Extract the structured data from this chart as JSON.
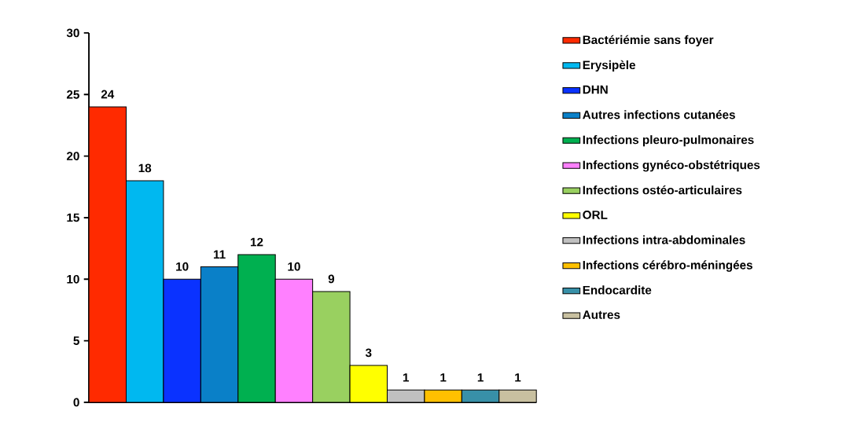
{
  "chart_data": {
    "type": "bar",
    "categories": [
      null
    ],
    "series": [
      {
        "name": "Bactériémie sans foyer",
        "color": "#ff2a00",
        "values": [
          24
        ]
      },
      {
        "name": "Erysipèle",
        "color": "#00b8f0",
        "values": [
          18
        ]
      },
      {
        "name": "DHN",
        "color": "#0a32ff",
        "values": [
          10
        ]
      },
      {
        "name": "Autres infections cutanées",
        "color": "#0a80c8",
        "values": [
          11
        ]
      },
      {
        "name": "Infections pleuro-pulmonaires",
        "color": "#00b050",
        "values": [
          12
        ]
      },
      {
        "name": "Infections gynéco-obstétriques",
        "color": "#ff80ff",
        "values": [
          10
        ]
      },
      {
        "name": "Infections ostéo-articulaires",
        "color": "#99d060",
        "values": [
          9
        ]
      },
      {
        "name": "ORL",
        "color": "#ffff00",
        "values": [
          3
        ]
      },
      {
        "name": "Infections intra-abdominales",
        "color": "#c0c0c0",
        "values": [
          1
        ]
      },
      {
        "name": "Infections cérébro-méningées",
        "color": "#ffc000",
        "values": [
          1
        ]
      },
      {
        "name": "Endocardite",
        "color": "#3890a8",
        "values": [
          1
        ]
      },
      {
        "name": "Autres",
        "color": "#c8c0a0",
        "values": [
          1
        ]
      }
    ],
    "ylim": [
      0,
      30
    ],
    "yticks": [
      0,
      5,
      10,
      15,
      20,
      25,
      30
    ],
    "data_labels": true,
    "legend": "right",
    "tick_labels": "y"
  }
}
